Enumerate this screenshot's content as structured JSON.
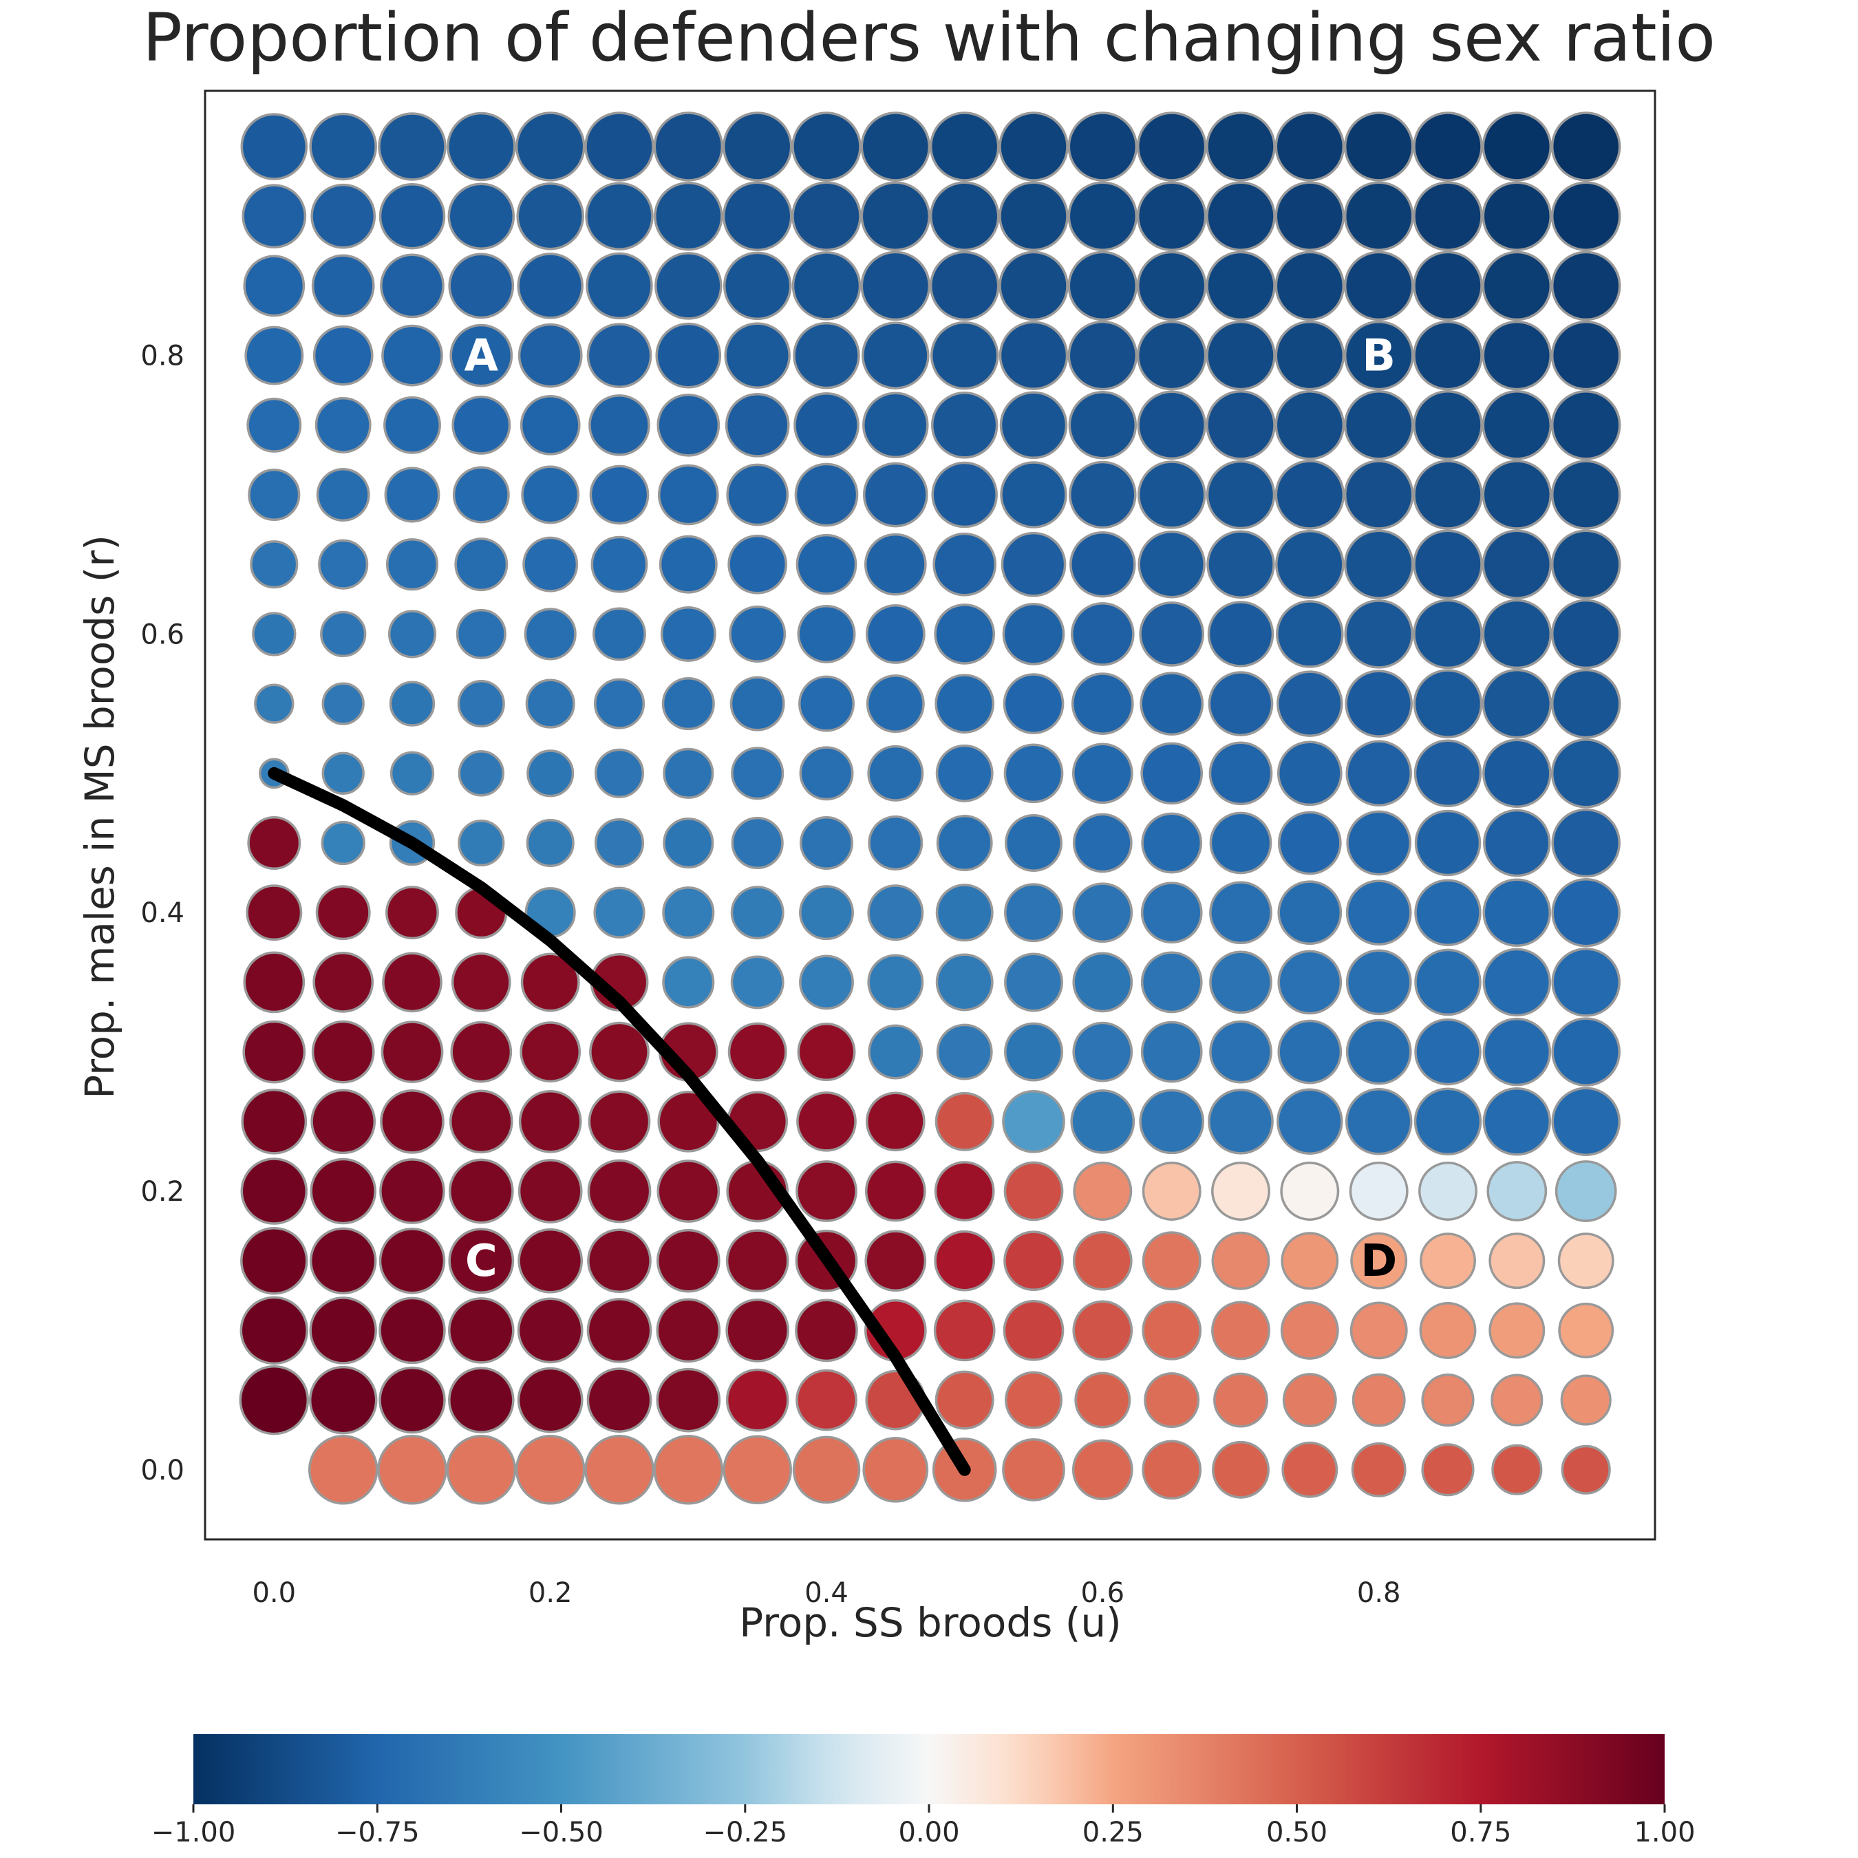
{
  "chart_data": {
    "type": "scatter",
    "title": "Proportion of defenders with changing sex ratio",
    "xlabel": "Prop. SS broods (u)",
    "ylabel": "Prop. males in MS broods (r)",
    "xlim": [
      -0.05,
      1.0
    ],
    "ylim": [
      -0.05,
      0.99
    ],
    "x_ticks": [
      0.0,
      0.2,
      0.4,
      0.6,
      0.8
    ],
    "x_tick_labels": [
      "0.0",
      "0.2",
      "0.4",
      "0.6",
      "0.8"
    ],
    "y_ticks": [
      0.0,
      0.2,
      0.4,
      0.6,
      0.8
    ],
    "y_tick_labels": [
      "0.0",
      "0.2",
      "0.4",
      "0.6",
      "0.8"
    ],
    "grid": false,
    "u_values": [
      0.0,
      0.05,
      0.1,
      0.15,
      0.2,
      0.25,
      0.3,
      0.35,
      0.4,
      0.45,
      0.5,
      0.55,
      0.6,
      0.65,
      0.7,
      0.75,
      0.8,
      0.85,
      0.9,
      0.95
    ],
    "r_values": [
      0.0,
      0.05,
      0.1,
      0.15,
      0.2,
      0.25,
      0.3,
      0.35,
      0.4,
      0.45,
      0.5,
      0.55,
      0.6,
      0.65,
      0.7,
      0.75,
      0.8,
      0.85,
      0.9,
      0.95
    ],
    "color_values_by_r": [
      [
        null,
        0.42,
        0.42,
        0.42,
        0.42,
        0.42,
        0.42,
        0.42,
        0.43,
        0.44,
        0.45,
        0.46,
        0.47,
        0.48,
        0.49,
        0.5,
        0.51,
        0.52,
        0.53,
        0.54
      ],
      [
        1.0,
        0.98,
        0.97,
        0.96,
        0.95,
        0.94,
        0.92,
        0.8,
        0.65,
        0.58,
        0.52,
        0.5,
        0.49,
        0.45,
        0.42,
        0.4,
        0.38,
        0.36,
        0.34,
        0.32
      ],
      [
        0.98,
        0.97,
        0.96,
        0.95,
        0.94,
        0.93,
        0.92,
        0.91,
        0.9,
        0.75,
        0.66,
        0.6,
        0.54,
        0.47,
        0.42,
        0.38,
        0.34,
        0.31,
        0.28,
        0.25
      ],
      [
        0.97,
        0.96,
        0.95,
        0.94,
        0.93,
        0.92,
        0.91,
        0.9,
        0.89,
        0.88,
        0.78,
        0.62,
        0.52,
        0.42,
        0.36,
        0.3,
        0.26,
        0.22,
        0.18,
        0.15
      ],
      [
        0.96,
        0.95,
        0.94,
        0.93,
        0.92,
        0.91,
        0.9,
        0.89,
        0.88,
        0.87,
        0.82,
        0.56,
        0.34,
        0.18,
        0.08,
        0.02,
        -0.06,
        -0.12,
        -0.18,
        -0.24
      ],
      [
        0.95,
        0.94,
        0.93,
        0.92,
        0.91,
        0.9,
        0.89,
        0.88,
        0.87,
        0.86,
        0.55,
        -0.46,
        -0.66,
        -0.67,
        -0.68,
        -0.69,
        -0.7,
        -0.71,
        -0.72,
        -0.73
      ],
      [
        0.94,
        0.93,
        0.92,
        0.91,
        0.9,
        0.89,
        0.88,
        0.87,
        0.86,
        -0.64,
        -0.65,
        -0.66,
        -0.67,
        -0.68,
        -0.69,
        -0.7,
        -0.71,
        -0.72,
        -0.73,
        -0.74
      ],
      [
        0.93,
        0.92,
        0.91,
        0.9,
        0.89,
        0.88,
        -0.6,
        -0.61,
        -0.62,
        -0.63,
        -0.64,
        -0.65,
        -0.66,
        -0.67,
        -0.68,
        -0.69,
        -0.7,
        -0.71,
        -0.72,
        -0.73
      ],
      [
        0.92,
        0.91,
        0.9,
        0.89,
        -0.6,
        -0.61,
        -0.62,
        -0.63,
        -0.64,
        -0.65,
        -0.66,
        -0.67,
        -0.68,
        -0.69,
        -0.7,
        -0.71,
        -0.72,
        -0.73,
        -0.74,
        -0.75
      ],
      [
        0.91,
        -0.6,
        -0.62,
        -0.63,
        -0.64,
        -0.65,
        -0.66,
        -0.67,
        -0.68,
        -0.69,
        -0.7,
        -0.71,
        -0.72,
        -0.73,
        -0.74,
        -0.75,
        -0.76,
        -0.77,
        -0.78,
        -0.79
      ],
      [
        -0.62,
        -0.63,
        -0.64,
        -0.65,
        -0.66,
        -0.67,
        -0.68,
        -0.69,
        -0.7,
        -0.71,
        -0.72,
        -0.73,
        -0.74,
        -0.75,
        -0.76,
        -0.77,
        -0.78,
        -0.79,
        -0.8,
        -0.81
      ],
      [
        -0.64,
        -0.65,
        -0.66,
        -0.67,
        -0.68,
        -0.69,
        -0.7,
        -0.71,
        -0.72,
        -0.73,
        -0.74,
        -0.75,
        -0.76,
        -0.77,
        -0.78,
        -0.79,
        -0.8,
        -0.81,
        -0.82,
        -0.83
      ],
      [
        -0.66,
        -0.67,
        -0.68,
        -0.69,
        -0.7,
        -0.71,
        -0.72,
        -0.73,
        -0.74,
        -0.75,
        -0.76,
        -0.77,
        -0.78,
        -0.79,
        -0.8,
        -0.81,
        -0.82,
        -0.83,
        -0.84,
        -0.85
      ],
      [
        -0.68,
        -0.69,
        -0.7,
        -0.71,
        -0.72,
        -0.73,
        -0.74,
        -0.75,
        -0.76,
        -0.77,
        -0.78,
        -0.79,
        -0.8,
        -0.81,
        -0.82,
        -0.83,
        -0.84,
        -0.85,
        -0.86,
        -0.87
      ],
      [
        -0.7,
        -0.71,
        -0.72,
        -0.73,
        -0.74,
        -0.75,
        -0.76,
        -0.77,
        -0.78,
        -0.79,
        -0.8,
        -0.81,
        -0.82,
        -0.83,
        -0.84,
        -0.85,
        -0.86,
        -0.87,
        -0.88,
        -0.89
      ],
      [
        -0.72,
        -0.73,
        -0.74,
        -0.75,
        -0.76,
        -0.77,
        -0.78,
        -0.79,
        -0.8,
        -0.81,
        -0.82,
        -0.83,
        -0.84,
        -0.85,
        -0.86,
        -0.87,
        -0.88,
        -0.89,
        -0.9,
        -0.91
      ],
      [
        -0.74,
        -0.75,
        -0.76,
        -0.77,
        -0.78,
        -0.79,
        -0.8,
        -0.81,
        -0.82,
        -0.83,
        -0.84,
        -0.85,
        -0.86,
        -0.87,
        -0.88,
        -0.89,
        -0.9,
        -0.91,
        -0.92,
        -0.93
      ],
      [
        -0.76,
        -0.77,
        -0.78,
        -0.79,
        -0.8,
        -0.81,
        -0.82,
        -0.83,
        -0.84,
        -0.85,
        -0.86,
        -0.87,
        -0.88,
        -0.89,
        -0.9,
        -0.91,
        -0.92,
        -0.93,
        -0.94,
        -0.95
      ],
      [
        -0.78,
        -0.79,
        -0.8,
        -0.81,
        -0.82,
        -0.83,
        -0.84,
        -0.85,
        -0.86,
        -0.87,
        -0.88,
        -0.89,
        -0.9,
        -0.91,
        -0.92,
        -0.93,
        -0.94,
        -0.95,
        -0.96,
        -0.97
      ],
      [
        -0.8,
        -0.81,
        -0.82,
        -0.83,
        -0.84,
        -0.85,
        -0.86,
        -0.87,
        -0.88,
        -0.89,
        -0.9,
        -0.91,
        -0.92,
        -0.93,
        -0.94,
        -0.95,
        -0.96,
        -0.97,
        -0.98,
        -0.99
      ]
    ],
    "size_by_r": [
      [
        0,
        1.0,
        1.0,
        1.0,
        1.0,
        1.0,
        1.0,
        0.99,
        0.97,
        0.94,
        0.92,
        0.9,
        0.87,
        0.85,
        0.82,
        0.8,
        0.78,
        0.75,
        0.72,
        0.7
      ],
      [
        1.0,
        0.98,
        0.96,
        0.95,
        0.94,
        0.93,
        0.92,
        0.9,
        0.88,
        0.86,
        0.84,
        0.82,
        0.8,
        0.79,
        0.78,
        0.77,
        0.76,
        0.75,
        0.74,
        0.72
      ],
      [
        0.98,
        0.97,
        0.96,
        0.95,
        0.94,
        0.93,
        0.92,
        0.91,
        0.9,
        0.89,
        0.88,
        0.87,
        0.86,
        0.85,
        0.84,
        0.83,
        0.82,
        0.81,
        0.8,
        0.79
      ],
      [
        0.97,
        0.96,
        0.95,
        0.94,
        0.93,
        0.92,
        0.91,
        0.9,
        0.89,
        0.88,
        0.87,
        0.86,
        0.85,
        0.84,
        0.83,
        0.82,
        0.81,
        0.8,
        0.8,
        0.8
      ],
      [
        0.96,
        0.95,
        0.94,
        0.93,
        0.92,
        0.91,
        0.9,
        0.89,
        0.88,
        0.87,
        0.86,
        0.85,
        0.84,
        0.84,
        0.84,
        0.84,
        0.84,
        0.84,
        0.86,
        0.88
      ],
      [
        0.94,
        0.93,
        0.92,
        0.91,
        0.9,
        0.89,
        0.88,
        0.87,
        0.86,
        0.85,
        0.84,
        0.9,
        0.92,
        0.93,
        0.94,
        0.95,
        0.96,
        0.97,
        0.98,
        0.99
      ],
      [
        0.9,
        0.9,
        0.89,
        0.88,
        0.87,
        0.86,
        0.85,
        0.84,
        0.83,
        0.78,
        0.8,
        0.84,
        0.86,
        0.88,
        0.9,
        0.92,
        0.94,
        0.96,
        0.98,
        0.99
      ],
      [
        0.88,
        0.87,
        0.86,
        0.85,
        0.84,
        0.83,
        0.74,
        0.76,
        0.78,
        0.8,
        0.82,
        0.84,
        0.86,
        0.88,
        0.9,
        0.92,
        0.94,
        0.96,
        0.98,
        0.99
      ],
      [
        0.8,
        0.78,
        0.76,
        0.74,
        0.72,
        0.73,
        0.74,
        0.76,
        0.78,
        0.8,
        0.82,
        0.84,
        0.86,
        0.88,
        0.9,
        0.92,
        0.94,
        0.96,
        0.98,
        0.99
      ],
      [
        0.76,
        0.62,
        0.64,
        0.66,
        0.68,
        0.7,
        0.72,
        0.74,
        0.76,
        0.78,
        0.8,
        0.82,
        0.85,
        0.87,
        0.89,
        0.91,
        0.93,
        0.95,
        0.97,
        0.99
      ],
      [
        0.42,
        0.6,
        0.62,
        0.65,
        0.67,
        0.7,
        0.72,
        0.75,
        0.77,
        0.8,
        0.82,
        0.85,
        0.87,
        0.89,
        0.91,
        0.93,
        0.95,
        0.97,
        0.99,
        1.0
      ],
      [
        0.56,
        0.6,
        0.64,
        0.67,
        0.7,
        0.72,
        0.75,
        0.78,
        0.8,
        0.83,
        0.85,
        0.87,
        0.89,
        0.91,
        0.93,
        0.95,
        0.97,
        0.99,
        1.0,
        1.0
      ],
      [
        0.62,
        0.65,
        0.68,
        0.71,
        0.74,
        0.76,
        0.79,
        0.81,
        0.83,
        0.85,
        0.87,
        0.89,
        0.91,
        0.93,
        0.95,
        0.97,
        0.99,
        1.0,
        1.0,
        1.0
      ],
      [
        0.68,
        0.71,
        0.74,
        0.76,
        0.79,
        0.81,
        0.83,
        0.85,
        0.87,
        0.89,
        0.91,
        0.93,
        0.95,
        0.97,
        0.98,
        0.99,
        1.0,
        1.0,
        1.0,
        1.0
      ],
      [
        0.74,
        0.76,
        0.79,
        0.81,
        0.83,
        0.85,
        0.87,
        0.89,
        0.91,
        0.93,
        0.95,
        0.96,
        0.97,
        0.98,
        0.99,
        1.0,
        1.0,
        1.0,
        1.0,
        1.0
      ],
      [
        0.78,
        0.8,
        0.82,
        0.84,
        0.86,
        0.88,
        0.9,
        0.92,
        0.94,
        0.95,
        0.96,
        0.97,
        0.98,
        0.99,
        1.0,
        1.0,
        1.0,
        1.0,
        1.0,
        1.0
      ],
      [
        0.84,
        0.86,
        0.88,
        0.9,
        0.92,
        0.93,
        0.94,
        0.95,
        0.96,
        0.97,
        0.98,
        0.99,
        1.0,
        1.0,
        1.0,
        1.0,
        1.0,
        1.0,
        1.0,
        1.0
      ],
      [
        0.88,
        0.9,
        0.92,
        0.94,
        0.95,
        0.96,
        0.97,
        0.98,
        0.99,
        1.0,
        1.0,
        1.0,
        1.0,
        1.0,
        1.0,
        1.0,
        1.0,
        1.0,
        1.0,
        1.0
      ],
      [
        0.92,
        0.93,
        0.95,
        0.96,
        0.97,
        0.98,
        0.99,
        1.0,
        1.0,
        1.0,
        1.0,
        1.0,
        1.0,
        1.0,
        1.0,
        1.0,
        1.0,
        1.0,
        1.0,
        1.0
      ],
      [
        0.96,
        0.97,
        0.98,
        0.99,
        1.0,
        1.0,
        1.0,
        1.0,
        1.0,
        1.0,
        1.0,
        1.0,
        1.0,
        1.0,
        1.0,
        1.0,
        1.0,
        1.0,
        1.0,
        1.0
      ]
    ],
    "boundary_curve": {
      "x": [
        0.0,
        0.05,
        0.1,
        0.15,
        0.2,
        0.25,
        0.3,
        0.35,
        0.4,
        0.45,
        0.5
      ],
      "y": [
        0.5,
        0.477,
        0.45,
        0.418,
        0.38,
        0.336,
        0.283,
        0.222,
        0.152,
        0.081,
        0.0
      ],
      "color": "#000000"
    },
    "annotations": [
      {
        "text": "A",
        "x": 0.15,
        "y": 0.8,
        "color": "#ffffff"
      },
      {
        "text": "B",
        "x": 0.8,
        "y": 0.8,
        "color": "#ffffff"
      },
      {
        "text": "C",
        "x": 0.15,
        "y": 0.15,
        "color": "#ffffff"
      },
      {
        "text": "D",
        "x": 0.8,
        "y": 0.15,
        "color": "#000000"
      }
    ],
    "colorbar": {
      "cmap": "RdBu_r",
      "range": [
        -1.0,
        1.0
      ],
      "ticks": [
        -1.0,
        -0.75,
        -0.5,
        -0.25,
        0.0,
        0.25,
        0.5,
        0.75,
        1.0
      ],
      "tick_labels": [
        "−1.00",
        "−0.75",
        "−0.50",
        "−0.25",
        "0.00",
        "0.25",
        "0.50",
        "0.75",
        "1.00"
      ],
      "orientation": "horizontal",
      "location": "bottom"
    },
    "marker_edge_color": "#999999"
  }
}
